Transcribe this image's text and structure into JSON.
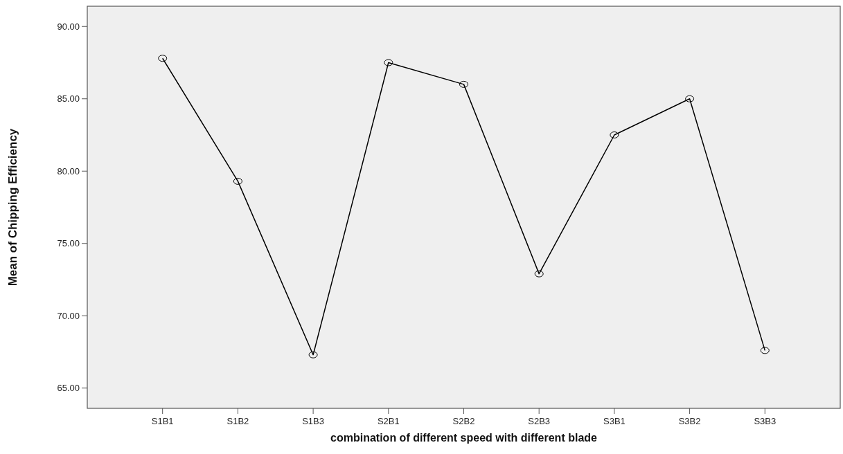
{
  "chart_data": {
    "type": "line",
    "xlabel": "combination of different speed with different blade",
    "ylabel": "Mean of Chipping Efficiency",
    "categories": [
      "S1B1",
      "S1B2",
      "S1B3",
      "S2B1",
      "S2B2",
      "S2B3",
      "S3B1",
      "S3B2",
      "S3B3"
    ],
    "series": [
      {
        "color": "#000000",
        "values": [
          87.8,
          79.3,
          67.3,
          87.5,
          86.0,
          72.9,
          82.5,
          85.0,
          67.6
        ]
      }
    ],
    "ylim": [
      63.6,
      91.4
    ],
    "yticks": [
      {
        "value": 65,
        "label": "65.00"
      },
      {
        "value": 70,
        "label": "70.00"
      },
      {
        "value": 75,
        "label": "75.00"
      },
      {
        "value": 80,
        "label": "80.00"
      },
      {
        "value": 85,
        "label": "85.00"
      },
      {
        "value": 90,
        "label": "90.00"
      }
    ],
    "grid": false,
    "marker": "circle",
    "line_style": "solid"
  }
}
